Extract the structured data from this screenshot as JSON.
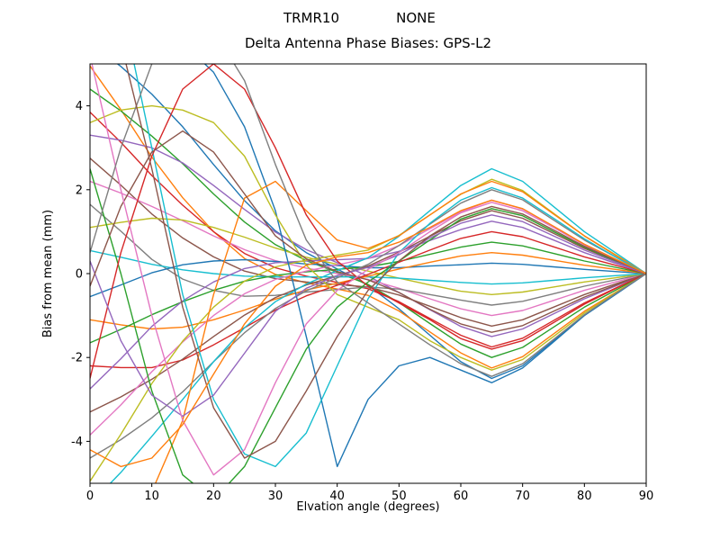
{
  "chart_data": {
    "type": "line",
    "suptitle_left": "TRMR10",
    "suptitle_right": "NONE",
    "title": "Delta Antenna Phase Biases: GPS-L2",
    "xlabel": "Elvation angle (degrees)",
    "ylabel": "Bias from mean (mm)",
    "xlim": [
      0,
      90
    ],
    "ylim": [
      -5,
      5
    ],
    "xticks": [
      0,
      10,
      20,
      30,
      40,
      50,
      60,
      70,
      80,
      90
    ],
    "yticks": [
      -4,
      -2,
      0,
      2,
      4
    ],
    "grid": false,
    "legend": null,
    "background": "#ffffff",
    "x": [
      0,
      5,
      10,
      15,
      20,
      25,
      30,
      35,
      40,
      45,
      50,
      55,
      60,
      65,
      70,
      75,
      80,
      85,
      90
    ],
    "series": [
      {
        "name": "line-01",
        "color": "#1f77b4",
        "values": [
          5.5,
          4.94,
          4.28,
          3.5,
          2.6,
          1.74,
          1.02,
          0.5,
          0.11,
          -0.28,
          -0.84,
          -1.47,
          -2.1,
          -2.5,
          -2.2,
          -1.6,
          -1.0,
          -0.5,
          0
        ]
      },
      {
        "name": "line-02",
        "color": "#ff7f0e",
        "values": [
          4.95,
          3.91,
          2.78,
          1.81,
          1.0,
          0.36,
          -0.02,
          -0.22,
          -0.37,
          -0.52,
          -0.89,
          -1.39,
          -1.89,
          -2.25,
          -1.98,
          -1.44,
          -0.9,
          -0.45,
          0
        ]
      },
      {
        "name": "line-03",
        "color": "#2ca02c",
        "values": [
          4.4,
          3.88,
          3.28,
          2.62,
          1.9,
          1.23,
          0.69,
          0.31,
          0.03,
          -0.26,
          -0.69,
          -1.19,
          -1.68,
          -2.0,
          -1.76,
          -1.28,
          -0.8,
          -0.4,
          0
        ]
      },
      {
        "name": "line-04",
        "color": "#d62728",
        "values": [
          3.85,
          3.13,
          2.34,
          1.63,
          1.0,
          0.48,
          0.14,
          -0.06,
          -0.21,
          -0.36,
          -0.67,
          -1.07,
          -1.47,
          -1.75,
          -1.54,
          -1.12,
          -0.7,
          -0.35,
          0
        ]
      },
      {
        "name": "line-05",
        "color": "#9467bd",
        "values": [
          3.3,
          3.18,
          3.0,
          2.64,
          2.1,
          1.53,
          0.99,
          0.57,
          0.26,
          -0.06,
          -0.45,
          -0.86,
          -1.26,
          -1.5,
          -1.32,
          -0.96,
          -0.6,
          -0.3,
          0
        ]
      },
      {
        "name": "line-06",
        "color": "#8c564b",
        "values": [
          2.75,
          2.11,
          1.42,
          0.85,
          0.4,
          0.06,
          -0.12,
          -0.2,
          -0.26,
          -0.32,
          -0.51,
          -0.78,
          -1.05,
          -1.25,
          -1.1,
          -0.8,
          -0.5,
          -0.25,
          0
        ]
      },
      {
        "name": "line-07",
        "color": "#e377c2",
        "values": [
          2.2,
          1.92,
          1.6,
          1.26,
          0.9,
          0.57,
          0.31,
          0.13,
          0.0,
          -0.14,
          -0.35,
          -0.6,
          -0.84,
          -1.0,
          -0.88,
          -0.64,
          -0.4,
          -0.2,
          0
        ]
      },
      {
        "name": "line-08",
        "color": "#7f7f7f",
        "values": [
          1.65,
          1.01,
          0.34,
          -0.13,
          -0.4,
          -0.54,
          -0.52,
          -0.44,
          -0.38,
          -0.32,
          -0.37,
          -0.5,
          -0.63,
          -0.75,
          -0.66,
          -0.48,
          -0.3,
          -0.15,
          0
        ]
      },
      {
        "name": "line-09",
        "color": "#bcbd22",
        "values": [
          1.1,
          1.22,
          1.32,
          1.28,
          1.1,
          0.87,
          0.61,
          0.39,
          0.22,
          0.06,
          -0.11,
          -0.27,
          -0.42,
          -0.5,
          -0.44,
          -0.32,
          -0.2,
          -0.1,
          0
        ]
      },
      {
        "name": "line-10",
        "color": "#17becf",
        "values": [
          0.55,
          0.39,
          0.22,
          0.09,
          0.0,
          -0.06,
          -0.08,
          -0.08,
          -0.08,
          -0.08,
          -0.11,
          -0.16,
          -0.21,
          -0.25,
          -0.22,
          -0.16,
          -0.1,
          -0.05,
          0
        ]
      },
      {
        "name": "line-11",
        "color": "#1f77b4",
        "values": [
          -0.55,
          -0.27,
          0.02,
          0.21,
          0.3,
          0.33,
          0.29,
          0.23,
          0.19,
          0.14,
          0.14,
          0.18,
          0.21,
          0.25,
          0.22,
          0.16,
          0.1,
          0.05,
          0
        ]
      },
      {
        "name": "line-12",
        "color": "#ff7f0e",
        "values": [
          -1.1,
          -1.22,
          -1.32,
          -1.28,
          -1.1,
          -0.87,
          -0.61,
          -0.39,
          -0.23,
          -0.06,
          0.11,
          0.27,
          0.42,
          0.5,
          0.44,
          0.32,
          0.2,
          0.1,
          0
        ]
      },
      {
        "name": "line-13",
        "color": "#2ca02c",
        "values": [
          -1.65,
          -1.33,
          -0.98,
          -0.67,
          -0.4,
          -0.18,
          -0.04,
          0.04,
          0.1,
          0.16,
          0.29,
          0.46,
          0.63,
          0.75,
          0.66,
          0.48,
          0.3,
          0.15,
          0
        ]
      },
      {
        "name": "line-14",
        "color": "#d62728",
        "values": [
          -2.2,
          -2.24,
          -2.24,
          -2.06,
          -1.7,
          -1.29,
          -0.87,
          -0.53,
          -0.28,
          -0.02,
          0.27,
          0.56,
          0.84,
          1.0,
          0.88,
          0.64,
          0.4,
          0.2,
          0
        ]
      },
      {
        "name": "line-15",
        "color": "#9467bd",
        "values": [
          -2.75,
          -2.03,
          -1.26,
          -0.65,
          -0.2,
          0.12,
          0.26,
          0.3,
          0.33,
          0.36,
          0.53,
          0.79,
          1.05,
          1.25,
          1.1,
          0.8,
          0.5,
          0.25,
          0
        ]
      },
      {
        "name": "line-16",
        "color": "#8c564b",
        "values": [
          -3.3,
          -2.94,
          -2.52,
          -2.04,
          -1.5,
          -0.99,
          -0.57,
          -0.27,
          -0.05,
          0.18,
          0.51,
          0.89,
          1.26,
          1.5,
          1.32,
          0.96,
          0.6,
          0.3,
          0
        ]
      },
      {
        "name": "line-17",
        "color": "#e377c2",
        "values": [
          -3.85,
          -3.13,
          -2.34,
          -1.63,
          -1.0,
          -0.48,
          -0.14,
          0.06,
          0.21,
          0.36,
          0.67,
          1.07,
          1.47,
          1.75,
          1.54,
          1.12,
          0.7,
          0.35,
          0
        ]
      },
      {
        "name": "line-18",
        "color": "#7f7f7f",
        "values": [
          -4.4,
          -3.96,
          -3.44,
          -2.82,
          -2.1,
          -1.41,
          -0.83,
          -0.41,
          -0.1,
          0.22,
          0.67,
          1.18,
          1.68,
          2.0,
          1.76,
          1.28,
          0.8,
          0.4,
          0
        ]
      },
      {
        "name": "line-19",
        "color": "#bcbd22",
        "values": [
          -4.95,
          -3.83,
          -2.62,
          -1.61,
          -0.8,
          -0.18,
          0.16,
          0.32,
          0.44,
          0.56,
          0.91,
          1.4,
          1.89,
          2.25,
          1.98,
          1.44,
          0.9,
          0.45,
          0
        ]
      },
      {
        "name": "line-20",
        "color": "#17becf",
        "values": [
          -5.5,
          -4.74,
          -3.88,
          -3.0,
          -2.1,
          -1.29,
          -0.67,
          -0.25,
          0.07,
          0.38,
          0.89,
          1.5,
          2.1,
          2.5,
          2.2,
          1.6,
          1.0,
          0.5,
          0
        ]
      },
      {
        "name": "line-21",
        "color": "#1f77b4",
        "values": [
          6.5,
          6.3,
          6.0,
          5.5,
          4.8,
          3.5,
          1.5,
          -1.5,
          -4.6,
          -3.0,
          -2.2,
          -2.0,
          -2.3,
          -2.6,
          -2.25,
          -1.63,
          -1.0,
          -0.5,
          0
        ]
      },
      {
        "name": "line-22",
        "color": "#ff7f0e",
        "values": [
          -6.5,
          -6.0,
          -5.2,
          -3.5,
          -0.5,
          1.8,
          2.2,
          1.5,
          0.8,
          0.6,
          0.9,
          1.4,
          1.9,
          2.2,
          1.95,
          1.42,
          0.9,
          0.44,
          0
        ]
      },
      {
        "name": "line-23",
        "color": "#bcbd22",
        "values": [
          3.6,
          3.9,
          4.0,
          3.9,
          3.6,
          2.8,
          1.4,
          0.2,
          -0.5,
          -0.8,
          -1.1,
          -1.6,
          -2.0,
          -2.3,
          -2.05,
          -1.5,
          -0.94,
          -0.46,
          0
        ]
      },
      {
        "name": "line-24",
        "color": "#17becf",
        "values": [
          9.0,
          6.5,
          3.0,
          -0.5,
          -3.0,
          -4.3,
          -4.6,
          -3.8,
          -2.2,
          -0.6,
          0.5,
          1.2,
          1.75,
          2.05,
          1.8,
          1.32,
          0.83,
          0.4,
          0
        ]
      },
      {
        "name": "line-25",
        "color": "#2ca02c",
        "values": [
          2.5,
          0.0,
          -2.8,
          -4.8,
          -5.4,
          -4.6,
          -3.2,
          -1.8,
          -0.8,
          -0.2,
          0.3,
          0.8,
          1.3,
          1.55,
          1.38,
          1.0,
          0.63,
          0.3,
          0
        ]
      },
      {
        "name": "line-26",
        "color": "#d62728",
        "values": [
          -2.5,
          0.5,
          2.8,
          4.4,
          5.0,
          4.4,
          3.0,
          1.4,
          0.3,
          -0.3,
          -0.7,
          -1.1,
          -1.55,
          -1.8,
          -1.6,
          -1.17,
          -0.73,
          -0.36,
          0
        ]
      },
      {
        "name": "line-27",
        "color": "#9467bd",
        "values": [
          0.3,
          -1.6,
          -2.9,
          -3.4,
          -2.9,
          -1.9,
          -0.9,
          -0.35,
          -0.05,
          0.15,
          0.45,
          0.85,
          1.2,
          1.4,
          1.24,
          0.9,
          0.56,
          0.28,
          0
        ]
      },
      {
        "name": "line-28",
        "color": "#8c564b",
        "values": [
          -0.3,
          1.6,
          2.9,
          3.4,
          2.9,
          1.9,
          0.9,
          0.35,
          0.05,
          -0.15,
          -0.45,
          -0.85,
          -1.2,
          -1.4,
          -1.24,
          -0.9,
          -0.56,
          -0.28,
          0
        ]
      },
      {
        "name": "line-29",
        "color": "#e377c2",
        "values": [
          5.2,
          2.0,
          -1.0,
          -3.5,
          -4.8,
          -4.2,
          -2.6,
          -1.2,
          -0.4,
          0.1,
          0.5,
          1.0,
          1.45,
          1.7,
          1.5,
          1.1,
          0.68,
          0.33,
          0
        ]
      },
      {
        "name": "line-30",
        "color": "#7f7f7f",
        "values": [
          0.5,
          3.0,
          5.0,
          6.0,
          5.8,
          4.6,
          2.6,
          0.8,
          -0.2,
          -0.7,
          -1.2,
          -1.7,
          -2.15,
          -2.45,
          -2.15,
          -1.57,
          -0.98,
          -0.48,
          0
        ]
      },
      {
        "name": "line-31",
        "color": "#8c564b",
        "values": [
          7.5,
          5.5,
          2.5,
          -0.8,
          -3.2,
          -4.4,
          -4.0,
          -2.8,
          -1.5,
          -0.4,
          0.3,
          0.9,
          1.35,
          1.6,
          1.42,
          1.04,
          0.65,
          0.32,
          0
        ]
      },
      {
        "name": "line-32",
        "color": "#ff7f0e",
        "values": [
          -4.2,
          -4.6,
          -4.4,
          -3.6,
          -2.4,
          -1.2,
          -0.3,
          0.2,
          0.4,
          0.5,
          0.75,
          1.1,
          1.5,
          1.75,
          1.55,
          1.13,
          0.7,
          0.35,
          0
        ]
      }
    ]
  }
}
